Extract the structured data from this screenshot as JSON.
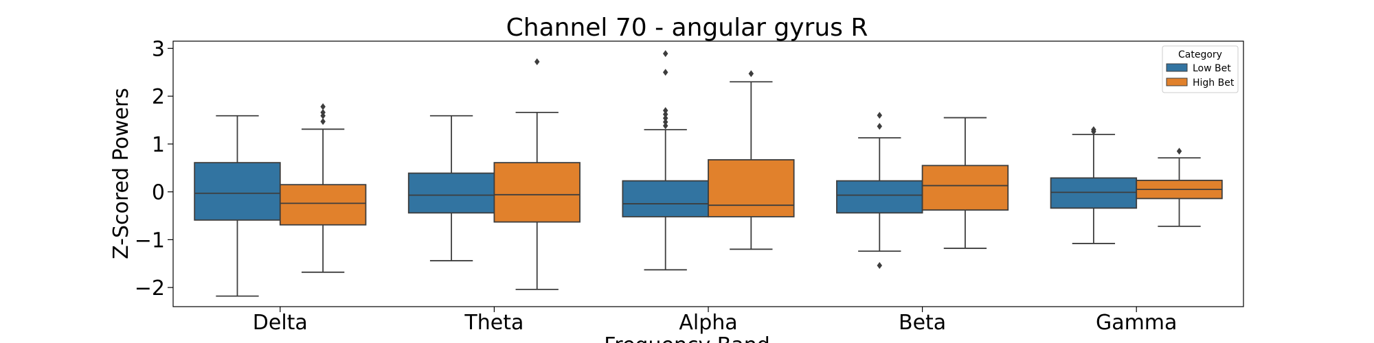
{
  "chart_data": {
    "type": "boxplot",
    "title": "Channel 70 - angular gyrus R",
    "xlabel": "Frequency Band",
    "ylabel": "Z-Scored Powers",
    "categories": [
      "Delta",
      "Theta",
      "Alpha",
      "Beta",
      "Gamma"
    ],
    "ylim": [
      -2.4,
      3.15
    ],
    "yticks": [
      3,
      2,
      1,
      0,
      -1,
      -2
    ],
    "ytick_labels": [
      "3",
      "2",
      "1",
      "0",
      "−1",
      "−2"
    ],
    "legend": {
      "title": "Category",
      "position": "top-right"
    },
    "series": [
      {
        "name": "Low Bet",
        "color": "#3274a1",
        "boxes": [
          {
            "whislo": -2.18,
            "q1": -0.59,
            "med": -0.03,
            "q3": 0.61,
            "whishi": 1.59,
            "fliers": []
          },
          {
            "whislo": -1.44,
            "q1": -0.44,
            "med": -0.07,
            "q3": 0.39,
            "whishi": 1.59,
            "fliers": []
          },
          {
            "whislo": -1.63,
            "q1": -0.52,
            "med": -0.25,
            "q3": 0.23,
            "whishi": 1.3,
            "fliers": [
              1.38,
              1.46,
              1.54,
              1.62,
              1.7,
              2.5,
              2.89
            ]
          },
          {
            "whislo": -1.24,
            "q1": -0.44,
            "med": -0.07,
            "q3": 0.23,
            "whishi": 1.13,
            "fliers": [
              1.37,
              1.6,
              -1.54
            ]
          },
          {
            "whislo": -1.08,
            "q1": -0.34,
            "med": -0.01,
            "q3": 0.29,
            "whishi": 1.2,
            "fliers": [
              1.26,
              1.3
            ]
          }
        ]
      },
      {
        "name": "High Bet",
        "color": "#e1812c",
        "boxes": [
          {
            "whislo": -1.68,
            "q1": -0.69,
            "med": -0.24,
            "q3": 0.15,
            "whishi": 1.31,
            "fliers": [
              1.47,
              1.59,
              1.66,
              1.78
            ]
          },
          {
            "whislo": -2.04,
            "q1": -0.63,
            "med": -0.06,
            "q3": 0.61,
            "whishi": 1.66,
            "fliers": [
              2.72
            ]
          },
          {
            "whislo": -1.2,
            "q1": -0.52,
            "med": -0.28,
            "q3": 0.67,
            "whishi": 2.3,
            "fliers": [
              2.47
            ]
          },
          {
            "whislo": -1.18,
            "q1": -0.38,
            "med": 0.13,
            "q3": 0.55,
            "whishi": 1.55,
            "fliers": []
          },
          {
            "whislo": -0.72,
            "q1": -0.14,
            "med": 0.05,
            "q3": 0.24,
            "whishi": 0.71,
            "fliers": [
              0.85
            ]
          }
        ]
      }
    ]
  }
}
